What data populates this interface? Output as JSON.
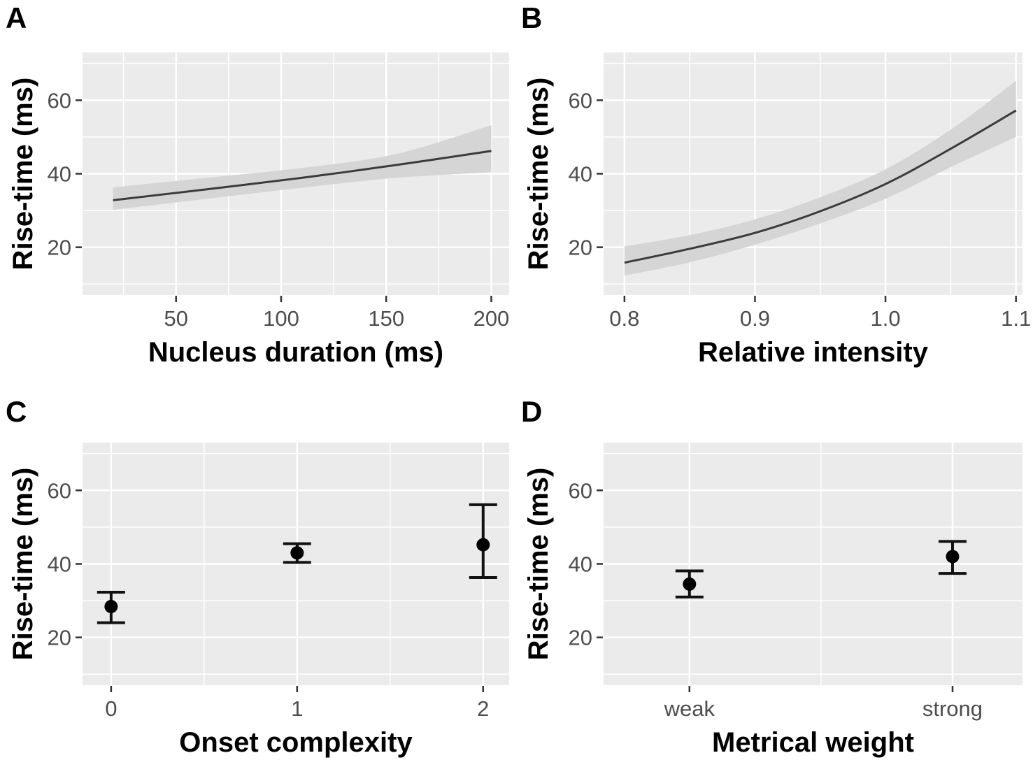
{
  "figure_title": "",
  "style": {
    "panel_bg": "#EBEBEB",
    "gridline": "#FFFFFF",
    "tick_mark": "#333333",
    "tick_label": "#4D4D4D",
    "axis_title": "#000000",
    "panel_letter": "#000000",
    "ribbon": "#D5D5D5",
    "smooth_line": "#3B3B3B",
    "point": "#000000",
    "error_bar": "#111111"
  },
  "chart_data": [
    {
      "panel_label": "A",
      "type": "line",
      "xlabel": "Nucleus duration (ms)",
      "ylabel": "Rise-time (ms)",
      "xlim": [
        5.5,
        208.5
      ],
      "ylim": [
        7,
        73
      ],
      "grid": true,
      "legend": "none",
      "xticks": {
        "labels": [
          "50",
          "100",
          "150",
          "200"
        ],
        "pos": [
          50,
          100,
          150,
          200
        ],
        "minor": [
          25,
          75,
          125,
          175
        ]
      },
      "yticks": {
        "labels": [
          "20",
          "40",
          "60"
        ],
        "pos": [
          20,
          40,
          60
        ],
        "minor": [
          10,
          30,
          50,
          70
        ]
      },
      "line": {
        "x": [
          20,
          65,
          110,
          155,
          200
        ],
        "y": [
          32.8,
          35.8,
          38.9,
          42.4,
          46.2
        ]
      },
      "ribbon": {
        "upper": [
          36.3,
          38.9,
          41.6,
          45.4,
          53.2
        ],
        "lower": [
          30.2,
          33.2,
          36.2,
          38.9,
          40.4
        ]
      }
    },
    {
      "panel_label": "B",
      "type": "line",
      "xlabel": "Relative intensity",
      "ylabel": "Rise-time (ms)",
      "xlim": [
        0.784,
        1.105
      ],
      "ylim": [
        7,
        73
      ],
      "grid": true,
      "legend": "none",
      "xticks": {
        "labels": [
          "0.8",
          "0.9",
          "1.0",
          "1.1"
        ],
        "pos": [
          0.8,
          0.9,
          1.0,
          1.1
        ],
        "minor": [
          0.85,
          0.95,
          1.05
        ]
      },
      "yticks": {
        "labels": [
          "20",
          "40",
          "60"
        ],
        "pos": [
          20,
          40,
          60
        ],
        "minor": [
          10,
          30,
          50,
          70
        ]
      },
      "line": {
        "x": [
          0.8,
          0.85,
          0.9,
          0.95,
          1.0,
          1.05,
          1.1
        ],
        "y": [
          15.8,
          19.6,
          23.9,
          29.8,
          37.2,
          46.8,
          57.2
        ]
      },
      "ribbon": {
        "upper": [
          20.2,
          23.3,
          27.6,
          33.6,
          41.2,
          52.0,
          65.3
        ],
        "lower": [
          12.3,
          15.9,
          20.7,
          26.5,
          33.2,
          41.8,
          50.0
        ]
      }
    },
    {
      "panel_label": "C",
      "type": "scatter",
      "xlabel": "Onset complexity",
      "ylabel": "Rise-time (ms)",
      "ylim": [
        7,
        73
      ],
      "grid": true,
      "legend": "none",
      "categories": [
        "0",
        "1",
        "2"
      ],
      "cat_pos": [
        0.067,
        0.503,
        0.939
      ],
      "minor_pos": [
        0.285,
        0.721
      ],
      "yticks": {
        "labels": [
          "20",
          "40",
          "60"
        ],
        "pos": [
          20,
          40,
          60
        ],
        "minor": [
          10,
          30,
          50,
          70
        ]
      },
      "points": [
        28.4,
        43.0,
        45.2
      ],
      "ci_lower": [
        24.0,
        40.4,
        36.3
      ],
      "ci_upper": [
        32.3,
        45.5,
        56.1
      ]
    },
    {
      "panel_label": "D",
      "type": "scatter",
      "xlabel": "Metrical weight",
      "ylabel": "Rise-time (ms)",
      "ylim": [
        7,
        73
      ],
      "grid": true,
      "legend": "none",
      "categories": [
        "weak",
        "strong"
      ],
      "cat_pos": [
        0.205,
        0.833
      ],
      "minor_pos": [
        0.519
      ],
      "yticks": {
        "labels": [
          "20",
          "40",
          "60"
        ],
        "pos": [
          20,
          40,
          60
        ],
        "minor": [
          10,
          30,
          50,
          70
        ]
      },
      "points": [
        34.5,
        42.0
      ],
      "ci_lower": [
        31.0,
        37.4
      ],
      "ci_upper": [
        38.1,
        46.1
      ]
    }
  ]
}
